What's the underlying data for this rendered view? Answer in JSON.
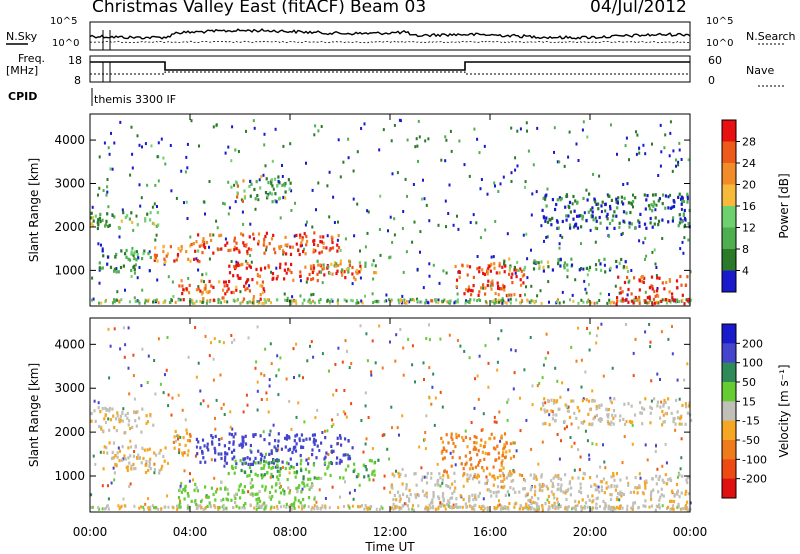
{
  "header": {
    "title": "Christmas Valley East (fitACF)",
    "beam": "Beam 03",
    "date": "04/Jul/2012"
  },
  "top_panels": {
    "nsky_label": "N.Sky",
    "nsearch_label": "N.Search",
    "nsky_ticks": [
      "10^5",
      "10^0"
    ],
    "nsky_right_ticks": [
      "10^5",
      "10^0"
    ],
    "freq_label_1": "Freq.",
    "freq_label_2": "[MHz]",
    "freq_ticks": [
      "18",
      "8"
    ],
    "nave_ticks": [
      "60",
      "0"
    ],
    "nave_label": "Nave",
    "cpid_label": "CPID",
    "cpid_value": "themis 3300 IF"
  },
  "colors": {
    "power_scale": [
      "#1a1acd",
      "#2a7a2a",
      "#4fae4f",
      "#6ed06e",
      "#f6b93a",
      "#f28c28",
      "#ee5a1a",
      "#e81010"
    ],
    "velocity_scale": [
      "#1a1acd",
      "#4444cc",
      "#2e8b57",
      "#66cc33",
      "#c0c0b8",
      "#f5a623",
      "#f07b1c",
      "#ee4a14",
      "#e01010"
    ]
  },
  "chart_data": [
    {
      "type": "heatmap",
      "name": "power",
      "ylabel": "Slant Range [km]",
      "yticks": [
        1000,
        2000,
        3000,
        4000
      ],
      "ylim": [
        180,
        4600
      ],
      "xlim": [
        0,
        24
      ],
      "colorbar_label": "Power [dB]",
      "colorbar_ticks": [
        4,
        8,
        12,
        16,
        20,
        24,
        28
      ],
      "bands": [
        {
          "t0": 0.0,
          "t1": 2.7,
          "r0": 2000,
          "r1": 2400,
          "level": 0.35
        },
        {
          "t0": 0.3,
          "t1": 2.5,
          "r0": 1000,
          "r1": 1500,
          "level": 0.25
        },
        {
          "t0": 2.5,
          "t1": 4.5,
          "r0": 1200,
          "r1": 1600,
          "level": 0.7
        },
        {
          "t0": 4.0,
          "t1": 10.0,
          "r0": 1400,
          "r1": 1900,
          "level": 0.85
        },
        {
          "t0": 5.5,
          "t1": 11.0,
          "r0": 800,
          "r1": 1200,
          "level": 0.9
        },
        {
          "t0": 3.5,
          "t1": 7.0,
          "r0": 350,
          "r1": 800,
          "level": 0.8
        },
        {
          "t0": 9.0,
          "t1": 11.5,
          "r0": 950,
          "r1": 1250,
          "level": 0.5
        },
        {
          "t0": 14.5,
          "t1": 17.5,
          "r0": 450,
          "r1": 1200,
          "level": 0.85
        },
        {
          "t0": 16.5,
          "t1": 21.5,
          "r0": 1000,
          "r1": 1300,
          "level": 0.3
        },
        {
          "t0": 18.0,
          "t1": 24.0,
          "r0": 2000,
          "r1": 2800,
          "level": 0.15
        },
        {
          "t0": 21.0,
          "t1": 24.0,
          "r0": 250,
          "r1": 900,
          "level": 0.9
        },
        {
          "t0": 5.6,
          "t1": 6.2,
          "r0": 2600,
          "r1": 3100,
          "level": 0.6
        },
        {
          "t0": 6.2,
          "t1": 8.0,
          "r0": 2600,
          "r1": 3200,
          "level": 0.3
        }
      ]
    },
    {
      "type": "heatmap",
      "name": "velocity",
      "ylabel": "Slant Range [km]",
      "yticks": [
        1000,
        2000,
        3000,
        4000
      ],
      "ylim": [
        180,
        4600
      ],
      "xlim": [
        0,
        24
      ],
      "xlabel": "Time UT",
      "xticks": [
        "00:00",
        "04:00",
        "08:00",
        "12:00",
        "16:00",
        "20:00",
        "00:00"
      ],
      "colorbar_label": "Velocity [m s^-1]",
      "colorbar_ticks": [
        200,
        100,
        50,
        15,
        -15,
        -50,
        -100,
        -200
      ],
      "bands": [
        {
          "t0": 0.0,
          "t1": 2.5,
          "r0": 2000,
          "r1": 2600,
          "v": -10
        },
        {
          "t0": 0.5,
          "t1": 3.0,
          "r0": 1100,
          "r1": 1800,
          "v": -10
        },
        {
          "t0": 4.2,
          "t1": 10.5,
          "r0": 1300,
          "r1": 2000,
          "v": 120
        },
        {
          "t0": 5.5,
          "t1": 11.5,
          "r0": 950,
          "r1": 1400,
          "v": 40
        },
        {
          "t0": 3.5,
          "t1": 9.0,
          "r0": 300,
          "r1": 900,
          "v": 30
        },
        {
          "t0": 12.0,
          "t1": 24.0,
          "r0": 250,
          "r1": 1100,
          "v": -5
        },
        {
          "t0": 14.0,
          "t1": 17.0,
          "r0": 1000,
          "r1": 2000,
          "v": -60
        },
        {
          "t0": 18.0,
          "t1": 24.0,
          "r0": 2200,
          "r1": 2800,
          "v": -10
        },
        {
          "t0": 3.3,
          "t1": 4.0,
          "r0": 1500,
          "r1": 2200,
          "v": -40
        }
      ]
    }
  ]
}
